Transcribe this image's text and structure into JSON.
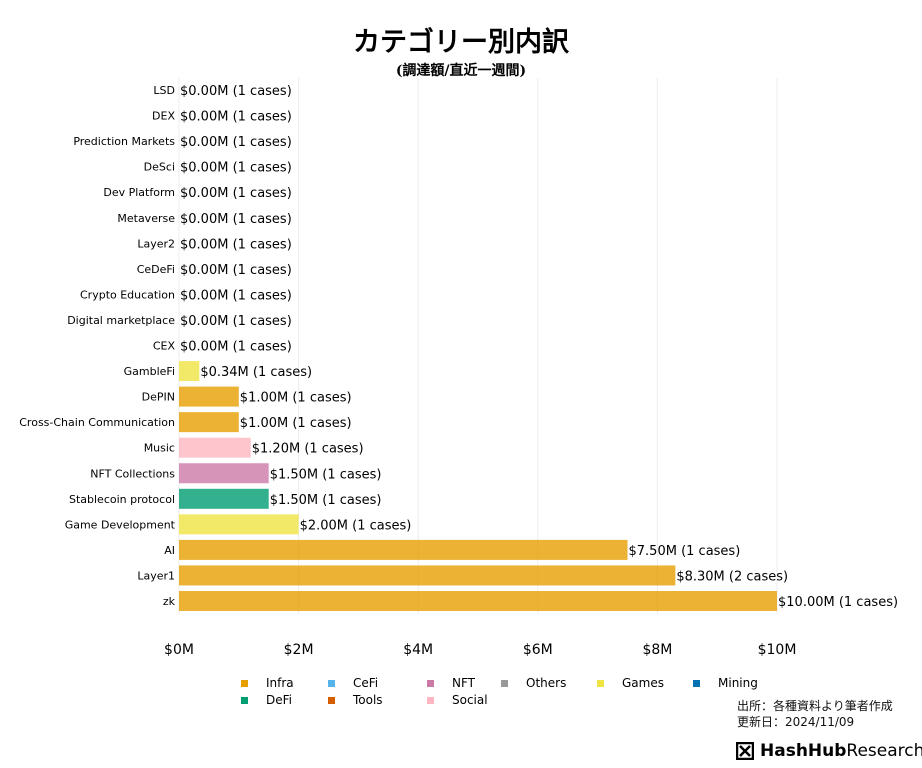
{
  "chart_data": {
    "type": "bar",
    "orientation": "horizontal",
    "title": "カテゴリー別内訳",
    "subtitle": "(調達額/直近一週間)",
    "xlim": [
      0,
      11
    ],
    "x_ticks": [
      0,
      2,
      4,
      6,
      8,
      10
    ],
    "x_tick_labels": [
      "$0M",
      "$2M",
      "$4M",
      "$6M",
      "$8M",
      "$10M"
    ],
    "grid": "vertical",
    "categories": [
      "LSD",
      "DEX",
      "Prediction Markets",
      "DeSci",
      "Dev Platform",
      "Metaverse",
      "Layer2",
      "CeDeFi",
      "Crypto Education",
      "Digital marketplace",
      "CEX",
      "GambleFi",
      "DePIN",
      "Cross-Chain Communication",
      "Music",
      "NFT Collections",
      "Stablecoin protocol",
      "Game Development",
      "AI",
      "Layer1",
      "zk"
    ],
    "values": [
      0,
      0,
      0,
      0,
      0,
      0,
      0,
      0,
      0,
      0,
      0,
      0.34,
      1.0,
      1.0,
      1.2,
      1.5,
      1.5,
      2.0,
      7.5,
      8.3,
      10.0
    ],
    "groups": [
      "",
      "",
      "",
      "",
      "",
      "",
      "",
      "",
      "",
      "",
      "",
      "Games",
      "Infra",
      "Infra",
      "Social",
      "NFT",
      "DeFi",
      "Games",
      "Infra",
      "Infra",
      "Infra"
    ],
    "data_labels": [
      "$0.00M (1 cases)",
      "$0.00M (1 cases)",
      "$0.00M (1 cases)",
      "$0.00M (1 cases)",
      "$0.00M (1 cases)",
      "$0.00M (1 cases)",
      "$0.00M (1 cases)",
      "$0.00M (1 cases)",
      "$0.00M (1 cases)",
      "$0.00M (1 cases)",
      "$0.00M (1 cases)",
      "$0.34M (1 cases)",
      "$1.00M (1 cases)",
      "$1.00M (1 cases)",
      "$1.20M (1 cases)",
      "$1.50M (1 cases)",
      "$1.50M (1 cases)",
      "$2.00M (1 cases)",
      "$7.50M (1 cases)",
      "$8.30M (2 cases)",
      "$10.00M (1 cases)"
    ],
    "legend": [
      {
        "name": "Infra",
        "color": "#E69F00"
      },
      {
        "name": "CeFi",
        "color": "#56B4E9"
      },
      {
        "name": "NFT",
        "color": "#CC79A7"
      },
      {
        "name": "Others",
        "color": "#999999"
      },
      {
        "name": "Games",
        "color": "#F0E442"
      },
      {
        "name": "Mining",
        "color": "#0072B2"
      },
      {
        "name": "DeFi",
        "color": "#009E73"
      },
      {
        "name": "Tools",
        "color": "#D55E00"
      },
      {
        "name": "Social",
        "color": "#FFB6C1"
      }
    ],
    "legend_placement": "bottom"
  },
  "footer": {
    "source": "出所：各種資料より筆者作成",
    "updated": "更新日：2024/11/09",
    "brand_bold": "HashHub",
    "brand_light": "Research"
  }
}
